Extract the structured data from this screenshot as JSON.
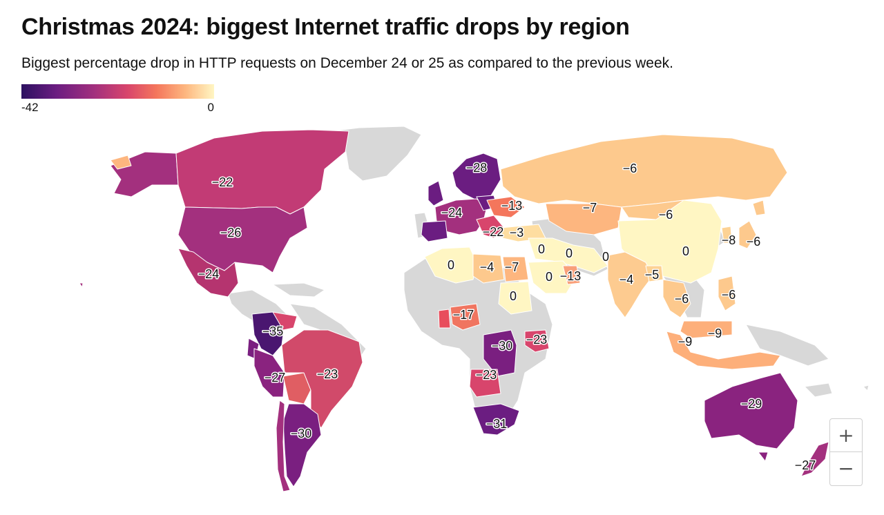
{
  "title": "Christmas 2024: biggest Internet traffic drops by region",
  "subtitle": "Biggest percentage drop in HTTP requests on December 24 or 25 as compared to the previous week.",
  "legend": {
    "min_label": "-42",
    "max_label": "0",
    "scale_min": -42,
    "scale_max": 0
  },
  "zoom": {
    "in_label": "+",
    "out_label": "−"
  },
  "colors": {
    "no_data": "#d8d8d8",
    "scale": [
      "#2c1160",
      "#6b1d81",
      "#a3307e",
      "#d8456c",
      "#f4765c",
      "#fdb67f",
      "#fff6c3"
    ]
  },
  "regions": [
    {
      "name": "Canada",
      "label": "−22",
      "value": -22
    },
    {
      "name": "United States",
      "label": "−26",
      "value": -26
    },
    {
      "name": "Mexico",
      "label": "−24",
      "value": -24
    },
    {
      "name": "Colombia",
      "label": "−35",
      "value": -35
    },
    {
      "name": "Peru",
      "label": "−27",
      "value": -27
    },
    {
      "name": "Brazil",
      "label": "−23",
      "value": -23
    },
    {
      "name": "Argentina",
      "label": "−30",
      "value": -30
    },
    {
      "name": "Nordics",
      "label": "−28",
      "value": -28
    },
    {
      "name": "Western Europe",
      "label": "−24",
      "value": -24
    },
    {
      "name": "Ukraine",
      "label": "−13",
      "value": -13
    },
    {
      "name": "Balkans",
      "label": "−22",
      "value": -22
    },
    {
      "name": "Turkey",
      "label": "−3",
      "value": -3
    },
    {
      "name": "Russia",
      "label": "−6",
      "value": -6
    },
    {
      "name": "Kazakhstan",
      "label": "−7",
      "value": -7
    },
    {
      "name": "Mongolia",
      "label": "−6",
      "value": -6
    },
    {
      "name": "China",
      "label": "0",
      "value": 0
    },
    {
      "name": "South Korea",
      "label": "−8",
      "value": -8
    },
    {
      "name": "Japan",
      "label": "−6",
      "value": -6
    },
    {
      "name": "Algeria",
      "label": "0",
      "value": 0
    },
    {
      "name": "Libya",
      "label": "−4",
      "value": -4
    },
    {
      "name": "Egypt",
      "label": "−7",
      "value": -7
    },
    {
      "name": "Iraq",
      "label": "0",
      "value": 0
    },
    {
      "name": "Iran",
      "label": "0",
      "value": 0
    },
    {
      "name": "Pakistan",
      "label": "0",
      "value": 0
    },
    {
      "name": "Saudi Arabia",
      "label": "0",
      "value": 0
    },
    {
      "name": "Gulf",
      "label": "−13",
      "value": -13
    },
    {
      "name": "Sudan",
      "label": "0",
      "value": 0
    },
    {
      "name": "India",
      "label": "−4",
      "value": -4
    },
    {
      "name": "Bangladesh",
      "label": "−5",
      "value": -5
    },
    {
      "name": "Thailand",
      "label": "−6",
      "value": -6
    },
    {
      "name": "Philippines",
      "label": "−6",
      "value": -6
    },
    {
      "name": "Malaysia",
      "label": "−9",
      "value": -9
    },
    {
      "name": "Indonesia",
      "label": "−9",
      "value": -9
    },
    {
      "name": "Nigeria",
      "label": "−17",
      "value": -17
    },
    {
      "name": "DR Congo",
      "label": "−30",
      "value": -30
    },
    {
      "name": "Kenya",
      "label": "−23",
      "value": -23
    },
    {
      "name": "Angola",
      "label": "−23",
      "value": -23
    },
    {
      "name": "South Africa",
      "label": "−31",
      "value": -31
    },
    {
      "name": "Australia",
      "label": "−29",
      "value": -29
    },
    {
      "name": "New Zealand",
      "label": "−27",
      "value": -27
    }
  ]
}
